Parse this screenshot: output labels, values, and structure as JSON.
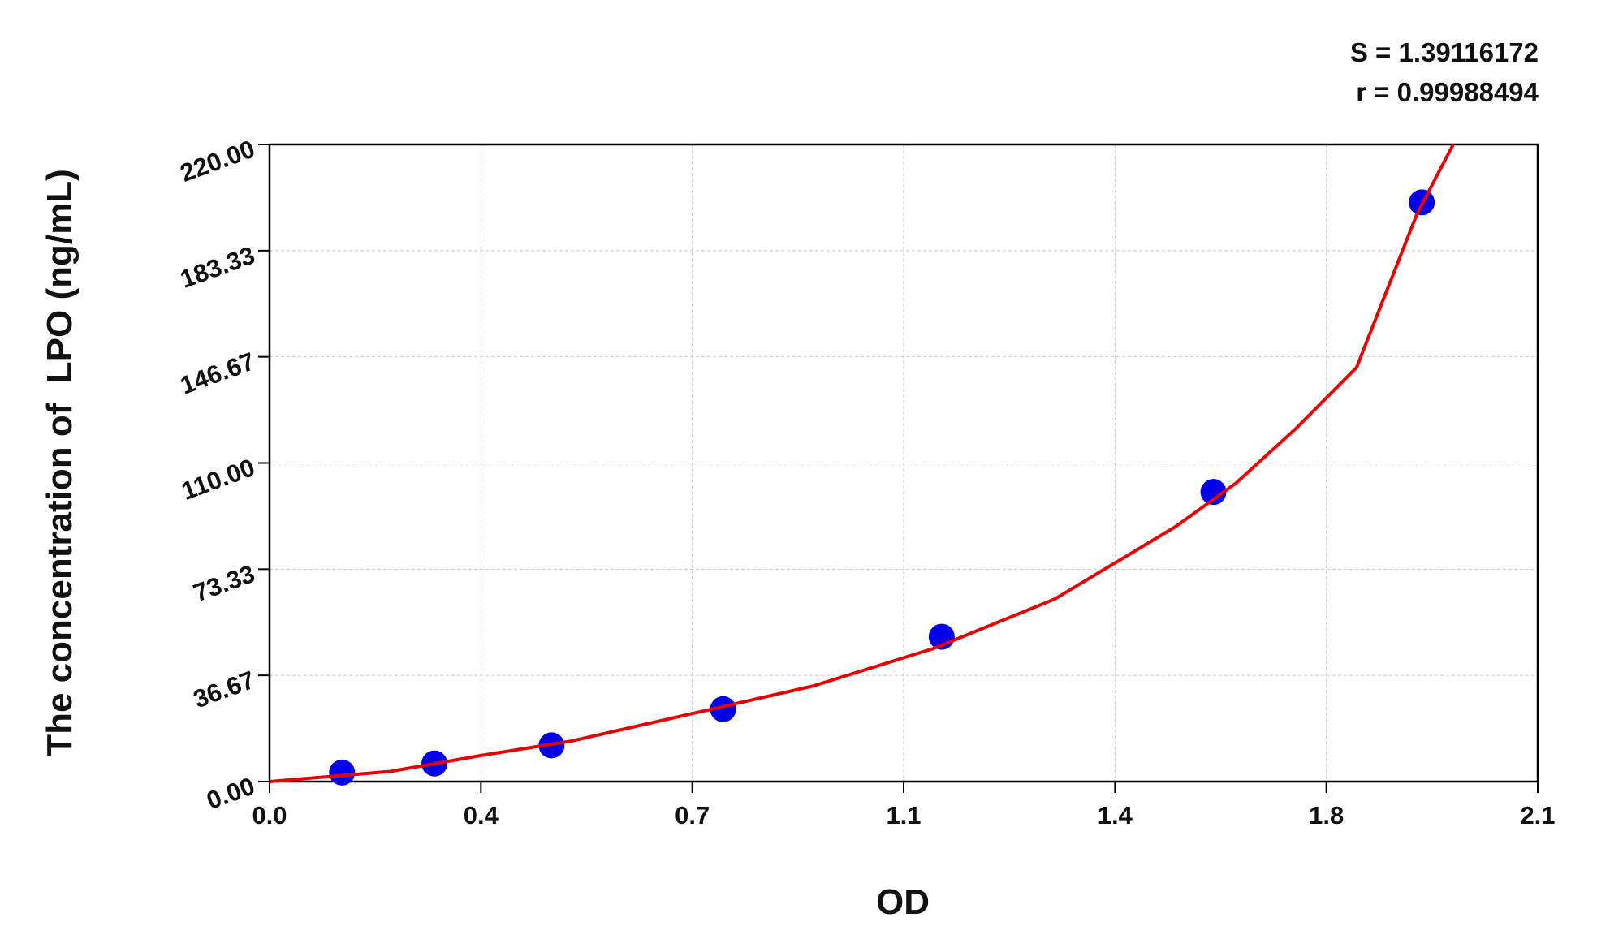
{
  "chart_data": {
    "type": "scatter",
    "annotations": [
      "S = 1.39116172",
      "r = 0.99988494"
    ],
    "xlabel": "OD",
    "ylabel": "The concentration of  LPO (ng/mL)",
    "x": [
      0.12,
      0.273,
      0.467,
      0.751,
      1.113,
      1.563,
      1.908
    ],
    "values": [
      3.12,
      6.25,
      12.5,
      25,
      50,
      100,
      200
    ],
    "color": "#0000e6",
    "fit": {
      "color": "#e60000",
      "x": [
        0,
        0.2,
        0.35,
        0.5,
        0.7,
        0.9,
        1.1,
        1.3,
        1.5,
        1.6,
        1.7,
        1.8,
        1.9,
        1.96
      ],
      "y": [
        0,
        3.5,
        9,
        14,
        23.5,
        33,
        46,
        63,
        88,
        103,
        122,
        143,
        196,
        220
      ]
    },
    "xlim": [
      0,
      2.1
    ],
    "ylim": [
      0,
      220
    ],
    "xticks": [
      {
        "value": 0,
        "label": "0.0"
      },
      {
        "value": 0.35,
        "label": "0.4"
      },
      0.7,
      {
        "value": 1.05,
        "label": "1.1"
      },
      1.4,
      {
        "value": 1.75,
        "label": "1.8"
      },
      2.1
    ],
    "yticks": [
      {
        "value": 0,
        "label": "0.00"
      },
      36.67,
      73.33,
      {
        "value": 110,
        "label": "110.00"
      },
      146.67,
      183.33,
      {
        "value": 220,
        "label": "220.00"
      }
    ],
    "grid": true
  }
}
